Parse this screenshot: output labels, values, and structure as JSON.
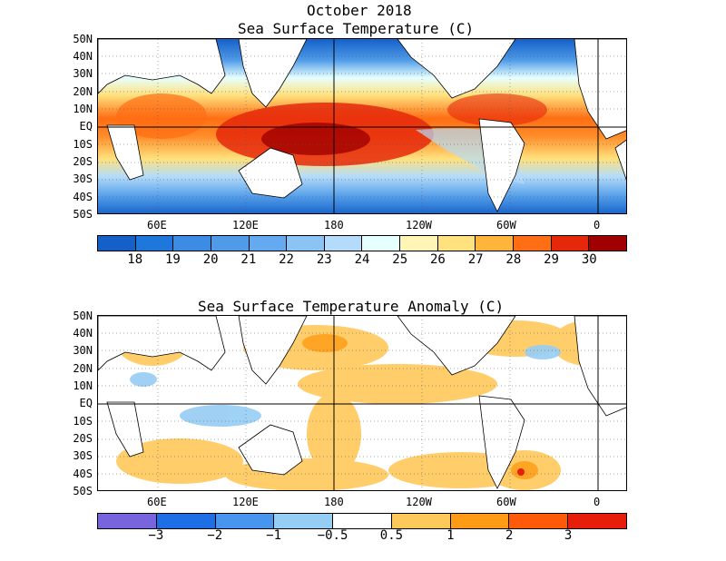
{
  "header": {
    "month": "October 2018",
    "sst_title": "Sea Surface Temperature (C)",
    "anom_title": "Sea Surface Temperature Anomaly (C)"
  },
  "axes": {
    "lat_labels": [
      "50N",
      "40N",
      "30N",
      "20N",
      "10N",
      "EQ",
      "10S",
      "20S",
      "30S",
      "40S",
      "50S"
    ],
    "lon_labels": [
      "60E",
      "120E",
      "180",
      "120W",
      "60W",
      "0"
    ]
  },
  "sst_colorbar": {
    "labels": [
      "18",
      "19",
      "20",
      "21",
      "22",
      "23",
      "24",
      "25",
      "26",
      "27",
      "28",
      "29",
      "30"
    ],
    "colors": [
      "#1460c8",
      "#1e78dc",
      "#3c8ce6",
      "#509be8",
      "#64aaf0",
      "#8cc3f5",
      "#b4dcfa",
      "#e6ffff",
      "#fff5b4",
      "#ffe17d",
      "#ffb43c",
      "#ff6e14",
      "#e6280a",
      "#a00000"
    ]
  },
  "anom_colorbar": {
    "labels": [
      "−3",
      "−2",
      "−1",
      "−0.5",
      "0.5",
      "1",
      "2",
      "3"
    ],
    "colors": [
      "#7864dc",
      "#1e6ee6",
      "#4696f0",
      "#96cdf5",
      "#ffffff",
      "#ffc85a",
      "#ff9b14",
      "#ff5a0a",
      "#e61e0a"
    ]
  }
}
